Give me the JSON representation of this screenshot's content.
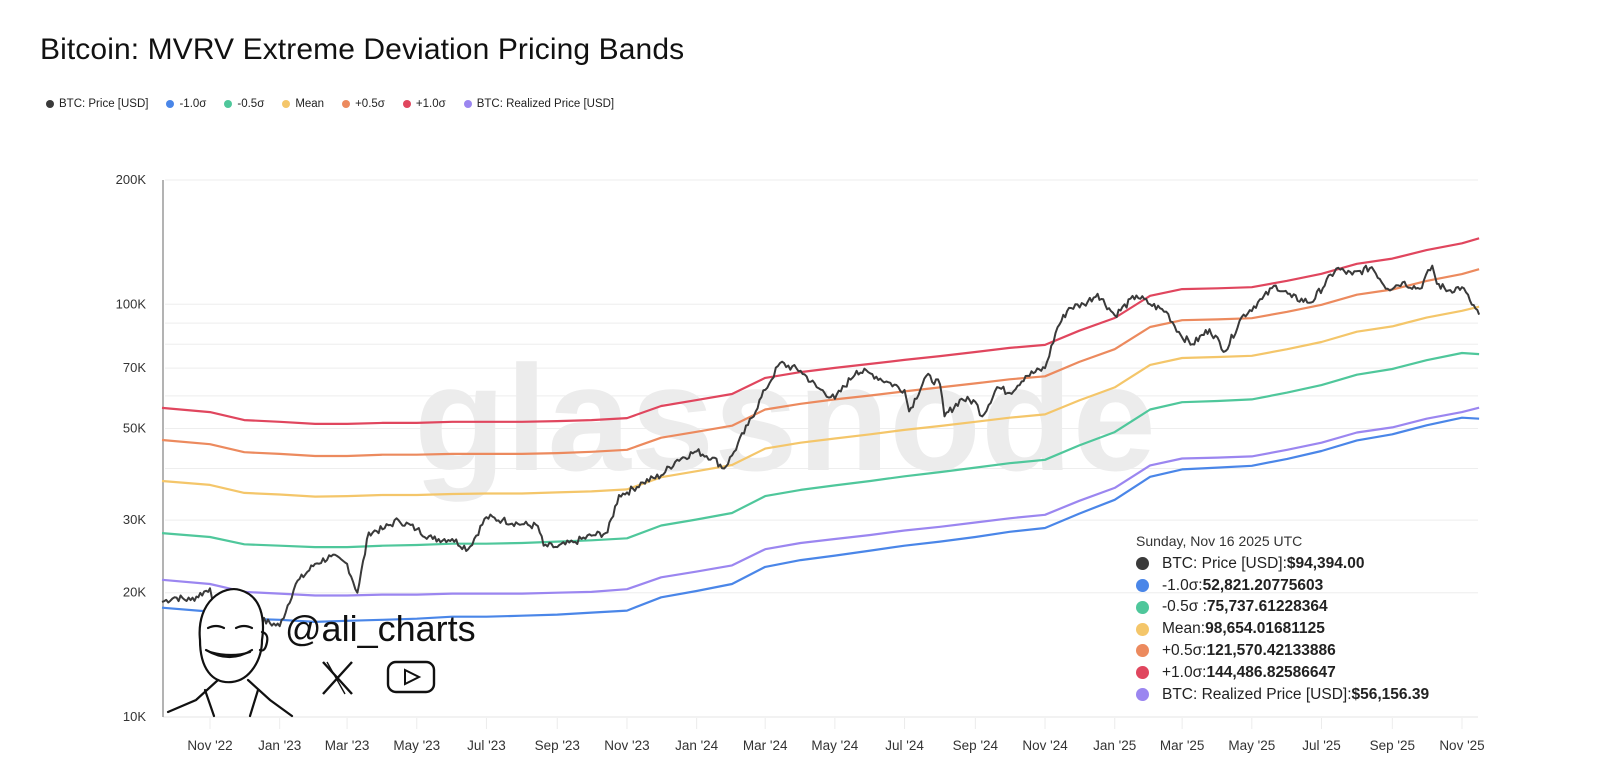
{
  "chart_data": {
    "type": "line",
    "title": "Bitcoin: MVRV Extreme Deviation Pricing Bands",
    "xlabel": "",
    "ylabel": "",
    "yscale": "log",
    "ylim": [
      10000,
      200000
    ],
    "xlim": [
      "2022-09-20",
      "2025-11-16"
    ],
    "grid": true,
    "legend_position": "top-left",
    "y_ticks": [
      {
        "value": 200000,
        "label": "200K"
      },
      {
        "value": 100000,
        "label": "100K"
      },
      {
        "value": 70000,
        "label": "70K"
      },
      {
        "value": 50000,
        "label": "50K"
      },
      {
        "value": 30000,
        "label": "30K"
      },
      {
        "value": 20000,
        "label": "20K"
      },
      {
        "value": 10000,
        "label": "10K"
      }
    ],
    "y_gridlines": [
      200000,
      100000,
      90000,
      80000,
      70000,
      60000,
      50000,
      40000,
      30000,
      20000
    ],
    "x_ticks": [
      {
        "date": "2022-11-01",
        "label": "Nov '22"
      },
      {
        "date": "2023-01-01",
        "label": "Jan '23"
      },
      {
        "date": "2023-03-01",
        "label": "Mar '23"
      },
      {
        "date": "2023-05-01",
        "label": "May '23"
      },
      {
        "date": "2023-07-01",
        "label": "Jul '23"
      },
      {
        "date": "2023-09-01",
        "label": "Sep '23"
      },
      {
        "date": "2023-11-01",
        "label": "Nov '23"
      },
      {
        "date": "2024-01-01",
        "label": "Jan '24"
      },
      {
        "date": "2024-03-01",
        "label": "Mar '24"
      },
      {
        "date": "2024-05-01",
        "label": "May '24"
      },
      {
        "date": "2024-07-01",
        "label": "Jul '24"
      },
      {
        "date": "2024-09-01",
        "label": "Sep '24"
      },
      {
        "date": "2024-11-01",
        "label": "Nov '24"
      },
      {
        "date": "2025-01-01",
        "label": "Jan '25"
      },
      {
        "date": "2025-03-01",
        "label": "Mar '25"
      },
      {
        "date": "2025-05-01",
        "label": "May '25"
      },
      {
        "date": "2025-07-01",
        "label": "Jul '25"
      },
      {
        "date": "2025-09-01",
        "label": "Sep '25"
      },
      {
        "date": "2025-11-01",
        "label": "Nov '25"
      }
    ],
    "band_dates": [
      "2022-09-20",
      "2022-11-01",
      "2022-12-01",
      "2023-01-01",
      "2023-02-01",
      "2023-03-01",
      "2023-04-01",
      "2023-05-01",
      "2023-06-01",
      "2023-07-01",
      "2023-08-01",
      "2023-09-01",
      "2023-10-01",
      "2023-11-01",
      "2023-12-01",
      "2024-01-01",
      "2024-02-01",
      "2024-03-01",
      "2024-04-01",
      "2024-05-01",
      "2024-06-01",
      "2024-07-01",
      "2024-08-01",
      "2024-09-01",
      "2024-10-01",
      "2024-11-01",
      "2024-12-01",
      "2025-01-01",
      "2025-02-01",
      "2025-03-01",
      "2025-04-01",
      "2025-05-01",
      "2025-06-01",
      "2025-07-01",
      "2025-08-01",
      "2025-09-01",
      "2025-10-01",
      "2025-11-01",
      "2025-11-16"
    ],
    "series": [
      {
        "name": "+1.0σ",
        "key": "p10",
        "color": "#e0465e",
        "values": [
          56100,
          54800,
          52400,
          51900,
          51300,
          51300,
          51600,
          51600,
          51900,
          51900,
          51900,
          52100,
          52400,
          53000,
          56700,
          58600,
          60600,
          66300,
          68500,
          70100,
          71700,
          73300,
          74900,
          76600,
          78400,
          79700,
          86300,
          92600,
          104800,
          108800,
          109300,
          110000,
          114000,
          118500,
          125300,
          129000,
          135300,
          140500,
          144487
        ]
      },
      {
        "name": "+0.5σ",
        "key": "p05",
        "color": "#ec8a5e",
        "values": [
          46900,
          45800,
          43800,
          43400,
          42900,
          42900,
          43200,
          43200,
          43400,
          43400,
          43400,
          43600,
          43900,
          44400,
          47500,
          49100,
          50800,
          55600,
          57400,
          58800,
          60100,
          61500,
          62900,
          64300,
          65800,
          66900,
          72500,
          77800,
          88100,
          91500,
          91900,
          92500,
          95900,
          99700,
          105500,
          108600,
          113900,
          118300,
          121570
        ]
      },
      {
        "name": "Mean",
        "key": "mean",
        "color": "#f4c66a",
        "values": [
          37300,
          36500,
          34900,
          34600,
          34200,
          34300,
          34500,
          34500,
          34700,
          34800,
          34800,
          35000,
          35200,
          35600,
          38100,
          39400,
          40800,
          44700,
          46200,
          47300,
          48400,
          49600,
          50700,
          51900,
          53100,
          54100,
          58500,
          62900,
          71300,
          74100,
          74500,
          75000,
          77800,
          81000,
          85800,
          88400,
          92800,
          96400,
          98654
        ]
      },
      {
        "name": "-0.5σ",
        "key": "m05",
        "color": "#4fc79b",
        "values": [
          27900,
          27300,
          26200,
          26000,
          25800,
          25800,
          26000,
          26100,
          26300,
          26300,
          26400,
          26600,
          26800,
          27100,
          29100,
          30100,
          31200,
          34300,
          35500,
          36400,
          37300,
          38300,
          39200,
          40200,
          41200,
          42000,
          45500,
          49000,
          55600,
          57900,
          58300,
          58800,
          61100,
          63700,
          67500,
          69700,
          73200,
          76200,
          75738
        ]
      },
      {
        "name": "-1.0σ",
        "key": "m10",
        "color": "#4a86e8",
        "values": [
          18400,
          18000,
          17300,
          17200,
          17000,
          17100,
          17200,
          17300,
          17500,
          17500,
          17600,
          17700,
          17900,
          18100,
          19500,
          20200,
          21000,
          23100,
          24000,
          24600,
          25300,
          26000,
          26600,
          27300,
          28100,
          28700,
          31100,
          33600,
          38200,
          39800,
          40200,
          40600,
          42200,
          44100,
          46800,
          48400,
          50900,
          53100,
          52821
        ]
      },
      {
        "name": "BTC: Realized Price [USD]",
        "key": "realized",
        "color": "#9b86f0",
        "values": [
          21500,
          21000,
          20100,
          19900,
          19700,
          19700,
          19800,
          19800,
          19900,
          19900,
          19900,
          20000,
          20100,
          20400,
          21800,
          22500,
          23300,
          25500,
          26400,
          27000,
          27600,
          28300,
          28900,
          29600,
          30300,
          30900,
          33400,
          35900,
          40700,
          42300,
          42500,
          42800,
          44400,
          46200,
          48900,
          50300,
          52800,
          54800,
          56156
        ]
      }
    ],
    "price": {
      "name": "BTC: Price [USD]",
      "key": "price",
      "color": "#3a3a3a",
      "points": [
        [
          "2022-09-20",
          19000
        ],
        [
          "2022-10-01",
          19500
        ],
        [
          "2022-10-15",
          19200
        ],
        [
          "2022-11-01",
          20500
        ],
        [
          "2022-11-10",
          16800
        ],
        [
          "2022-11-15",
          16600
        ],
        [
          "2022-12-01",
          17000
        ],
        [
          "2022-12-15",
          17200
        ],
        [
          "2023-01-01",
          16600
        ],
        [
          "2023-01-15",
          21000
        ],
        [
          "2023-02-01",
          23500
        ],
        [
          "2023-02-15",
          24500
        ],
        [
          "2023-03-01",
          23500
        ],
        [
          "2023-03-10",
          20000
        ],
        [
          "2023-03-20",
          28000
        ],
        [
          "2023-04-01",
          28500
        ],
        [
          "2023-04-15",
          30000
        ],
        [
          "2023-05-01",
          28500
        ],
        [
          "2023-05-15",
          27000
        ],
        [
          "2023-06-01",
          27000
        ],
        [
          "2023-06-15",
          25500
        ],
        [
          "2023-07-01",
          30500
        ],
        [
          "2023-07-15",
          30000
        ],
        [
          "2023-08-01",
          29300
        ],
        [
          "2023-08-15",
          29000
        ],
        [
          "2023-08-20",
          26000
        ],
        [
          "2023-09-01",
          25800
        ],
        [
          "2023-09-15",
          26500
        ],
        [
          "2023-10-01",
          27500
        ],
        [
          "2023-10-15",
          28000
        ],
        [
          "2023-10-25",
          34500
        ],
        [
          "2023-11-01",
          35000
        ],
        [
          "2023-11-15",
          37000
        ],
        [
          "2023-12-01",
          38500
        ],
        [
          "2023-12-15",
          42000
        ],
        [
          "2024-01-01",
          44000
        ],
        [
          "2024-01-15",
          42500
        ],
        [
          "2024-01-25",
          40000
        ],
        [
          "2024-02-01",
          43000
        ],
        [
          "2024-02-15",
          51000
        ],
        [
          "2024-03-01",
          62000
        ],
        [
          "2024-03-14",
          72000
        ],
        [
          "2024-04-01",
          69000
        ],
        [
          "2024-04-15",
          63000
        ],
        [
          "2024-05-01",
          59000
        ],
        [
          "2024-05-20",
          69000
        ],
        [
          "2024-06-01",
          68000
        ],
        [
          "2024-06-15",
          65000
        ],
        [
          "2024-07-01",
          62000
        ],
        [
          "2024-07-05",
          55000
        ],
        [
          "2024-07-20",
          67000
        ],
        [
          "2024-08-01",
          64000
        ],
        [
          "2024-08-05",
          53500
        ],
        [
          "2024-08-20",
          59000
        ],
        [
          "2024-09-01",
          58000
        ],
        [
          "2024-09-07",
          53500
        ],
        [
          "2024-09-20",
          63000
        ],
        [
          "2024-10-01",
          61000
        ],
        [
          "2024-10-15",
          67000
        ],
        [
          "2024-11-01",
          70000
        ],
        [
          "2024-11-12",
          88000
        ],
        [
          "2024-11-22",
          98000
        ],
        [
          "2024-12-05",
          100000
        ],
        [
          "2024-12-17",
          106000
        ],
        [
          "2025-01-01",
          94000
        ],
        [
          "2025-01-20",
          105000
        ],
        [
          "2025-02-01",
          100000
        ],
        [
          "2025-02-15",
          96000
        ],
        [
          "2025-02-28",
          84000
        ],
        [
          "2025-03-10",
          80000
        ],
        [
          "2025-03-25",
          87000
        ],
        [
          "2025-04-08",
          77000
        ],
        [
          "2025-04-22",
          93000
        ],
        [
          "2025-05-10",
          103000
        ],
        [
          "2025-05-22",
          111000
        ],
        [
          "2025-06-05",
          104000
        ],
        [
          "2025-06-22",
          101000
        ],
        [
          "2025-07-14",
          122000
        ],
        [
          "2025-07-28",
          118000
        ],
        [
          "2025-08-14",
          123000
        ],
        [
          "2025-08-28",
          109000
        ],
        [
          "2025-09-10",
          113000
        ],
        [
          "2025-09-25",
          109000
        ],
        [
          "2025-10-06",
          124000
        ],
        [
          "2025-10-10",
          112000
        ],
        [
          "2025-10-20",
          108000
        ],
        [
          "2025-11-01",
          110000
        ],
        [
          "2025-11-08",
          102000
        ],
        [
          "2025-11-16",
          94394
        ]
      ]
    }
  },
  "header": {
    "title": "Bitcoin: MVRV Extreme Deviation Pricing Bands"
  },
  "legend": [
    {
      "label": "BTC: Price [USD]",
      "color": "#3a3a3a"
    },
    {
      "label": "-1.0σ",
      "color": "#4a86e8"
    },
    {
      "label": "-0.5σ",
      "color": "#4fc79b"
    },
    {
      "label": "Mean",
      "color": "#f4c66a"
    },
    {
      "label": "+0.5σ",
      "color": "#ec8a5e"
    },
    {
      "label": "+1.0σ",
      "color": "#e0465e"
    },
    {
      "label": "BTC: Realized Price [USD]",
      "color": "#9b86f0"
    }
  ],
  "tooltip": {
    "date": "Sunday, Nov 16 2025 UTC",
    "rows": [
      {
        "label": "BTC: Price [USD]: ",
        "value": "$94,394.00",
        "color": "#3a3a3a"
      },
      {
        "label": "-1.0σ: ",
        "value": "52,821.20775603",
        "color": "#4a86e8"
      },
      {
        "label": "-0.5σ : ",
        "value": "75,737.61228364",
        "color": "#4fc79b"
      },
      {
        "label": "Mean: ",
        "value": "98,654.01681125",
        "color": "#f4c66a"
      },
      {
        "label": "+0.5σ: ",
        "value": "121,570.42133886",
        "color": "#ec8a5e"
      },
      {
        "label": "+1.0σ: ",
        "value": "144,486.82586647",
        "color": "#e0465e"
      },
      {
        "label": "BTC: Realized Price [USD]: ",
        "value": "$56,156.39",
        "color": "#9b86f0"
      }
    ]
  },
  "watermark": {
    "text": "glassnode"
  },
  "branding": {
    "handle": "@ali_charts",
    "icons": [
      "x-logo-icon",
      "youtube-icon"
    ]
  }
}
